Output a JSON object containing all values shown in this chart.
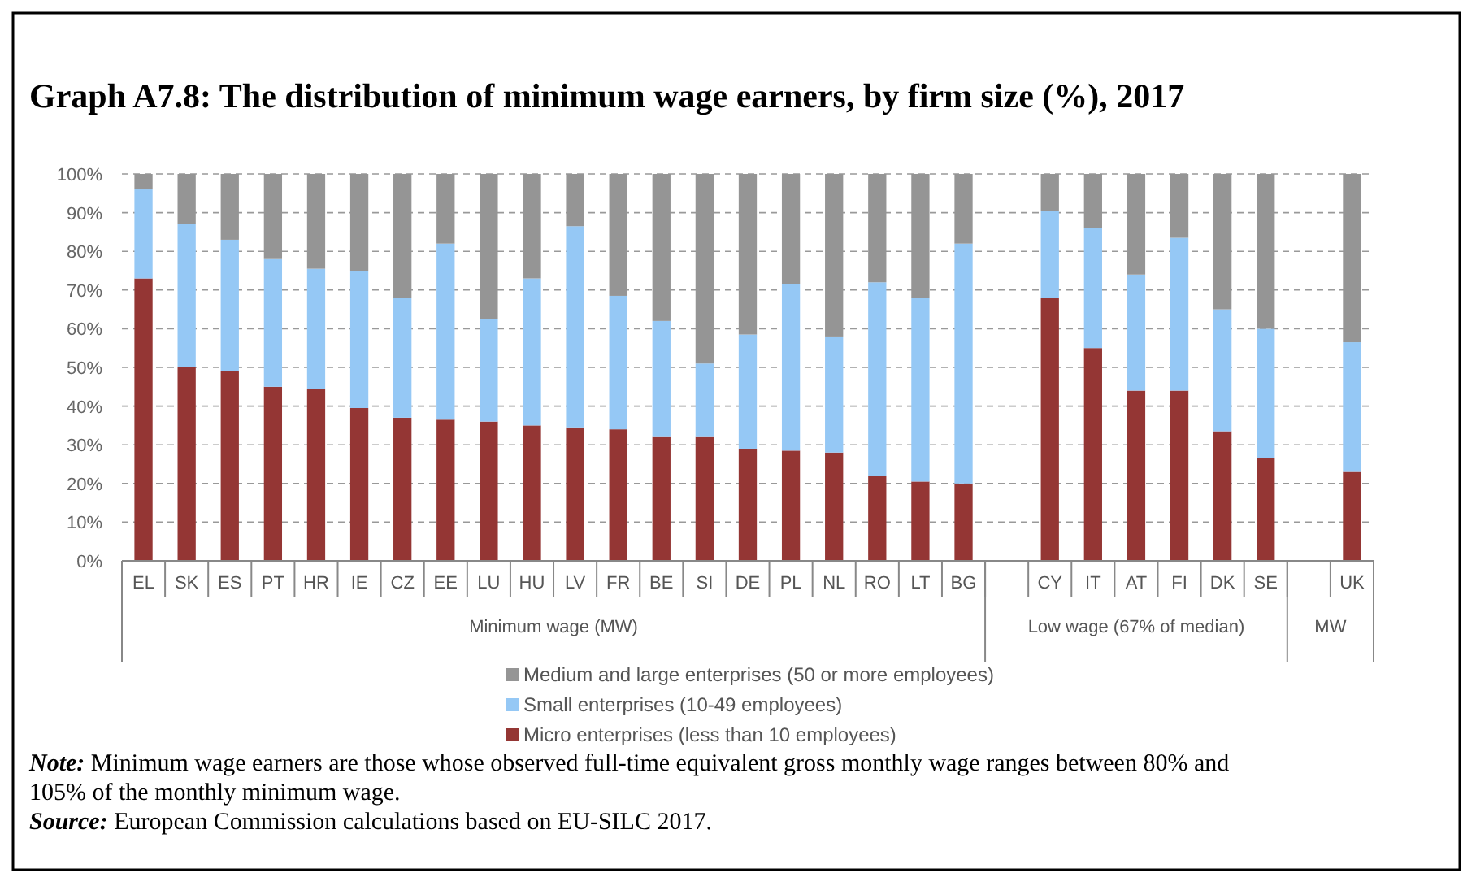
{
  "chart_data": {
    "type": "bar",
    "stacked": true,
    "title": "Graph A7.8: The distribution of minimum wage earners, by firm size (%), 2017",
    "categories": [
      "EL",
      "SK",
      "ES",
      "PT",
      "HR",
      "IE",
      "CZ",
      "EE",
      "LU",
      "HU",
      "LV",
      "FR",
      "BE",
      "SI",
      "DE",
      "PL",
      "NL",
      "RO",
      "LT",
      "BG",
      null,
      "CY",
      "IT",
      "AT",
      "FI",
      "DK",
      "SE",
      null,
      "UK"
    ],
    "series": [
      {
        "name": "Micro enterprises (less than 10 employees)",
        "color": "#943634",
        "values": [
          73,
          50,
          49,
          45,
          44.5,
          39.5,
          37,
          36.5,
          36,
          35,
          34.5,
          34,
          32,
          32,
          29,
          28.5,
          28,
          22,
          20.5,
          20,
          null,
          68,
          55,
          44,
          44,
          33.5,
          26.5,
          null,
          23
        ]
      },
      {
        "name": "Small enterprises (10-49 employees)",
        "color": "#95c8f5",
        "values": [
          23,
          37,
          34,
          33,
          31,
          35.5,
          31,
          45.5,
          26.5,
          38,
          52,
          34.5,
          30,
          19,
          29.5,
          43,
          30,
          50,
          47.5,
          62,
          null,
          22.5,
          31,
          30,
          39.5,
          31.5,
          33.5,
          null,
          33.5
        ]
      },
      {
        "name": "Medium and large enterprises (50 or more employees)",
        "color": "#959595",
        "values": [
          4,
          13,
          17,
          22,
          24.5,
          25,
          32,
          18,
          37.5,
          27,
          13.5,
          31.5,
          38,
          49,
          41.5,
          28.5,
          42,
          28,
          32,
          18,
          null,
          9.5,
          14,
          26,
          16.5,
          35,
          40,
          null,
          43.5
        ]
      }
    ],
    "ylim": [
      0,
      100
    ],
    "yticks": [
      {
        "value": 0,
        "label": "0%"
      },
      {
        "value": 10,
        "label": "10%"
      },
      {
        "value": 20,
        "label": "20%"
      },
      {
        "value": 30,
        "label": "30%"
      },
      {
        "value": 40,
        "label": "40%"
      },
      {
        "value": 50,
        "label": "50%"
      },
      {
        "value": 60,
        "label": "60%"
      },
      {
        "value": 70,
        "label": "70%"
      },
      {
        "value": 80,
        "label": "80%"
      },
      {
        "value": 90,
        "label": "90%"
      },
      {
        "value": 100,
        "label": "100%"
      }
    ],
    "grid": "y",
    "legend": "bottom",
    "annotations": [
      "Minimum wage (MW)",
      "Low wage (67% of median)",
      "MW",
      "Note: Minimum wage earners are those whose observed full-time equivalent gross monthly wage ranges between 80% and 105% of the monthly minimum wage.",
      "Source: European Commission calculations based on EU-SILC 2017."
    ]
  }
}
